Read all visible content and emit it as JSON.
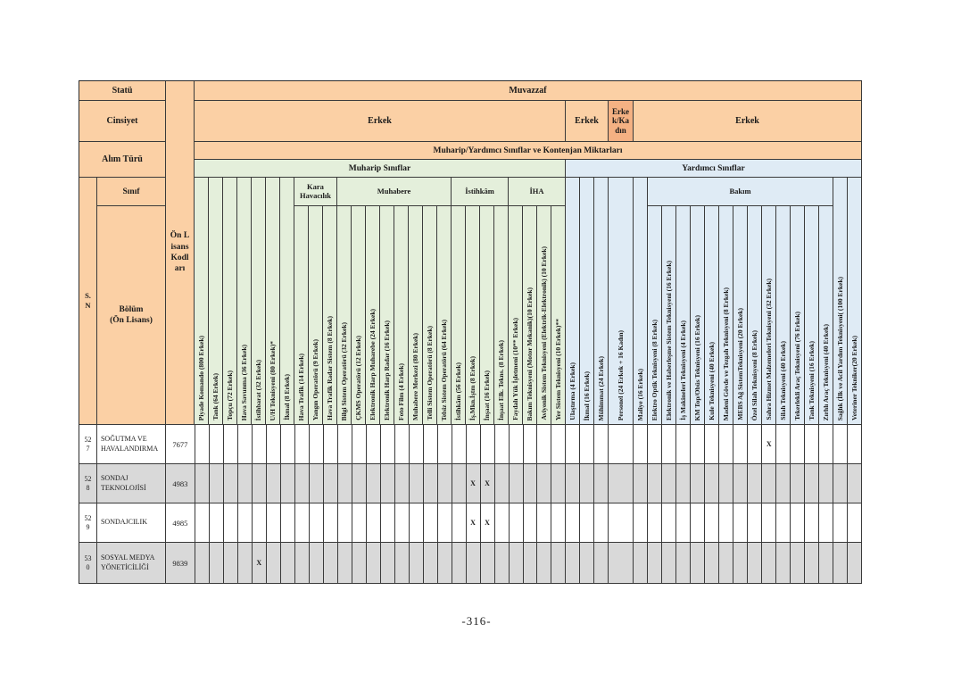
{
  "page": {
    "number": "-316-"
  },
  "colors": {
    "header_peach": "#fbd0a5",
    "header_dark_orange": "#f4b183",
    "muharip_green": "#e4efdb",
    "yardimci_blue": "#dfebf5",
    "shaded_row_gray": "#d9d9d9"
  },
  "left_headers": {
    "statu": "Statü",
    "cinsiyet": "Cinsiyet",
    "alim_turu": "Alım Türü",
    "sinif": "Sınıf",
    "sn": "S.\nN",
    "bolum": "Bölüm\n(Ön Lisans)",
    "on_lisans": "Ön Lisans Kodları"
  },
  "top_headers": {
    "muvazzaf": "Muvazzaf",
    "cinsiyet_cells": [
      {
        "label": "Erkek"
      },
      {
        "label": "Erkek"
      },
      {
        "label": "Erkek/Kadın"
      },
      {
        "label": "Erkek"
      }
    ],
    "kontenjan": "Muharip/Yardımcı Sınıflar ve Kontenjan Miktarları",
    "sections": [
      {
        "label": "Muharip Sınıflar"
      },
      {
        "label": "Yardımcı Sınıflar"
      }
    ]
  },
  "columns": [
    {
      "label": "Piyade Komando (800 Erkek)",
      "section": "muharip",
      "group": null
    },
    {
      "label": "Tank (64 Erkek)",
      "section": "muharip",
      "group": null
    },
    {
      "label": "Topçu (72 Erkek)",
      "section": "muharip",
      "group": null
    },
    {
      "label": "Hava Savunma (36 Erkek)",
      "section": "muharip",
      "group": null
    },
    {
      "label": "İstihbarat (32 Erkek)",
      "section": "muharip",
      "group": null
    },
    {
      "label": "U/H Teknisyeni (80 Erkek)*",
      "section": "muharip",
      "group": null
    },
    {
      "label": "İkmal (8 Erkek)",
      "section": "muharip",
      "group": null
    },
    {
      "label": "Hava Trafik (14 Erkek)",
      "section": "muharip",
      "group": "Kara Havacılık"
    },
    {
      "label": "Yangın Operatörü (9 Erkek)",
      "section": "muharip",
      "group": "Kara Havacılık"
    },
    {
      "label": "Hava Trafik Radar Sistem (8 Erkek)",
      "section": "muharip",
      "group": "Kara Havacılık"
    },
    {
      "label": "Bilgi Sistem Operatörü (32 Erkek)",
      "section": "muharip",
      "group": "Muhabere"
    },
    {
      "label": "ÇKMS Operatörü (12 Erkek)",
      "section": "muharip",
      "group": "Muhabere"
    },
    {
      "label": "Elektronik Harp Muharebe (24 Erkek)",
      "section": "muharip",
      "group": "Muhabere"
    },
    {
      "label": "Elektronik Harp Radar (16 Erkek)",
      "section": "muharip",
      "group": "Muhabere"
    },
    {
      "label": "Foto Film (4 Erkek)",
      "section": "muharip",
      "group": "Muhabere"
    },
    {
      "label": "Muhabere Merkezi (80 Erkek)",
      "section": "muharip",
      "group": "Muhabere"
    },
    {
      "label": "Telli Sistem Operatörü (8 Erkek)",
      "section": "muharip",
      "group": "Muhabere"
    },
    {
      "label": "Telsiz Sistem Operatörü (64 Erkek)",
      "section": "muharip",
      "group": "Muhabere"
    },
    {
      "label": "İstihkâm (56 Erkek)",
      "section": "muharip",
      "group": "İstihkâm"
    },
    {
      "label": "İş.Mkn.İştm (8 Erkek)",
      "section": "muharip",
      "group": "İstihkâm"
    },
    {
      "label": "İnşaat (16 Erkek)",
      "section": "muharip",
      "group": "İstihkâm"
    },
    {
      "label": "İnşaat Elk. Tekns. (8 Erkek)",
      "section": "muharip",
      "group": "İstihkâm"
    },
    {
      "label": "Faydalı Yük İşletmeni (10** Erkek)",
      "section": "muharip",
      "group": "İHA"
    },
    {
      "label": "Bakım Teknisyeni (Motor Mekanik)(10 Erkek)",
      "section": "muharip",
      "group": "İHA"
    },
    {
      "label": "Aviyonik Sistem Teknisyeni (Elektrik-Elektronik) (10 Erkek)",
      "section": "muharip",
      "group": "İHA"
    },
    {
      "label": "Yer Sistem Teknisyeni (10 Erkek)**",
      "section": "muharip",
      "group": "İHA"
    },
    {
      "label": "Ulaştırma (4 Erkek)",
      "section": "yardimci",
      "group": null
    },
    {
      "label": "İkmal (16 Erkek)",
      "section": "yardimci",
      "group": null
    },
    {
      "label": "Mühimmat (24 Erkek)",
      "section": "yardimci",
      "group": null
    },
    {
      "label": "Personel (24 Erkek + 16 Kadın)",
      "section": "yardimci",
      "group": null,
      "wide": true
    },
    {
      "label": "Maliye (16 Erkek)",
      "section": "yardimci",
      "group": null
    },
    {
      "label": "Elektro Optik Teknisyeni (8 Erkek)",
      "section": "yardimci",
      "group": "Bakım"
    },
    {
      "label": "Elektronik ve Haberleşme Sistem Teknisyeni (16 Erkek)",
      "section": "yardimci",
      "group": "Bakım"
    },
    {
      "label": "İş Makineleri Teknisyeni (4 Erkek)",
      "section": "yardimci",
      "group": "Bakım"
    },
    {
      "label": "KM Top/Obüs Teknisyeni (16 Erkek)",
      "section": "yardimci",
      "group": "Bakım"
    },
    {
      "label": "Kule Teknisyeni (40 Erkek)",
      "section": "yardimci",
      "group": "Bakım"
    },
    {
      "label": "Madeni Gövde ve Tezgah Teknisyeni (8 Erkek)",
      "section": "yardimci",
      "group": "Bakım"
    },
    {
      "label": "MEBS Ağ SistemTeknisyeni (20 Erkek)",
      "section": "yardimci",
      "group": "Bakım"
    },
    {
      "label": "Özel Silah Teknisyeni (8 Erkek)",
      "section": "yardimci",
      "group": "Bakım"
    },
    {
      "label": "Sahra Hizmet Malzemeleri Teknisyeni (32 Erkek)",
      "section": "yardimci",
      "group": "Bakım"
    },
    {
      "label": "Silah Teknisyeni (40 Erkek)",
      "section": "yardimci",
      "group": "Bakım"
    },
    {
      "label": "Tekerlekli Araç Teknisyeni (76 Erkek)",
      "section": "yardimci",
      "group": "Bakım"
    },
    {
      "label": "Tank Teknisyeni (16 Erkek)",
      "section": "yardimci",
      "group": "Bakım"
    },
    {
      "label": "Zırhlı Araç Teknisyeni (40 Erkek)",
      "section": "yardimci",
      "group": "Bakım"
    },
    {
      "label": "Sağlık (İlk ve Acil Yardım Teknisyeni( (100 Erkek)",
      "section": "yardimci",
      "group": null
    },
    {
      "label": "Veteriner Tekniker(20 Erkek)",
      "section": "yardimci",
      "group": null
    }
  ],
  "rows": [
    {
      "sn": "527",
      "bolum": "SOĞUTMA VE HAVALANDIRMA",
      "kod": "7677",
      "shaded": false,
      "marks": {
        "39": "X"
      }
    },
    {
      "sn": "528",
      "bolum": "SONDAJ TEKNOLOJİSİ",
      "kod": "4983",
      "shaded": true,
      "marks": {
        "19": "X",
        "20": "X"
      }
    },
    {
      "sn": "529",
      "bolum": "SONDAJCILIK",
      "kod": "4985",
      "shaded": false,
      "marks": {
        "19": "X",
        "20": "X"
      }
    },
    {
      "sn": "530",
      "bolum": "SOSYAL MEDYA YÖNETİCİLİĞİ",
      "kod": "9839",
      "shaded": true,
      "marks": {
        "4": "X"
      }
    }
  ]
}
